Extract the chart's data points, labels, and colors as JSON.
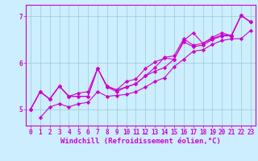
{
  "background_color": "#cceeff",
  "line_color": "#cc00cc",
  "grid_color": "#99cccc",
  "xlabel": "Windchill (Refroidissement éolien,°C)",
  "xlabel_fontsize": 6.5,
  "tick_fontsize": 5.5,
  "xlim": [
    -0.5,
    23.5
  ],
  "ylim": [
    4.65,
    7.25
  ],
  "yticks": [
    5,
    6,
    7
  ],
  "xticks": [
    0,
    1,
    2,
    3,
    4,
    5,
    6,
    7,
    8,
    9,
    10,
    11,
    12,
    13,
    14,
    15,
    16,
    17,
    18,
    19,
    20,
    21,
    22,
    23
  ],
  "lines": [
    {
      "x": [
        0,
        1,
        2,
        3,
        4,
        5,
        6,
        7,
        8,
        9,
        10,
        11,
        12,
        13,
        14,
        15,
        16,
        17,
        18,
        19,
        20,
        21,
        22,
        23
      ],
      "y": [
        5.0,
        5.38,
        5.22,
        5.5,
        5.28,
        5.28,
        5.28,
        5.88,
        5.48,
        5.38,
        5.48,
        5.55,
        5.72,
        5.82,
        5.9,
        6.08,
        6.45,
        6.35,
        6.38,
        6.5,
        6.58,
        6.58,
        7.02,
        6.88
      ]
    },
    {
      "x": [
        0,
        1,
        2,
        3,
        4,
        5,
        6,
        7,
        8,
        9,
        10,
        11,
        12,
        13,
        14,
        15,
        16,
        17,
        18,
        19,
        20,
        21,
        22,
        23
      ],
      "y": [
        5.0,
        5.38,
        5.22,
        5.5,
        5.28,
        5.28,
        5.28,
        5.88,
        5.48,
        5.42,
        5.6,
        5.65,
        5.88,
        6.02,
        6.1,
        6.08,
        6.48,
        6.65,
        6.42,
        6.55,
        6.65,
        6.58,
        7.02,
        6.88
      ]
    },
    {
      "x": [
        0,
        1,
        2,
        3,
        4,
        5,
        6,
        7,
        8,
        9,
        10,
        11,
        12,
        13,
        14,
        15,
        16,
        17,
        18,
        19,
        20,
        21,
        22,
        23
      ],
      "y": [
        5.0,
        5.38,
        5.22,
        5.5,
        5.28,
        5.35,
        5.38,
        5.88,
        5.5,
        5.42,
        5.48,
        5.55,
        5.72,
        5.9,
        6.12,
        6.15,
        6.52,
        6.38,
        6.42,
        6.52,
        6.6,
        6.6,
        7.02,
        6.88
      ]
    },
    {
      "x": [
        1,
        2,
        3,
        4,
        5,
        6,
        7,
        8,
        9,
        10,
        11,
        12,
        13,
        14,
        15,
        16,
        17,
        18,
        19,
        20,
        21,
        22,
        23
      ],
      "y": [
        4.82,
        5.05,
        5.12,
        5.05,
        5.12,
        5.15,
        5.38,
        5.28,
        5.3,
        5.32,
        5.38,
        5.48,
        5.6,
        5.68,
        5.92,
        6.08,
        6.25,
        6.28,
        6.4,
        6.48,
        6.52,
        6.52,
        6.7
      ]
    }
  ],
  "marker": "D",
  "markersize": 2.2,
  "linewidth": 0.8
}
